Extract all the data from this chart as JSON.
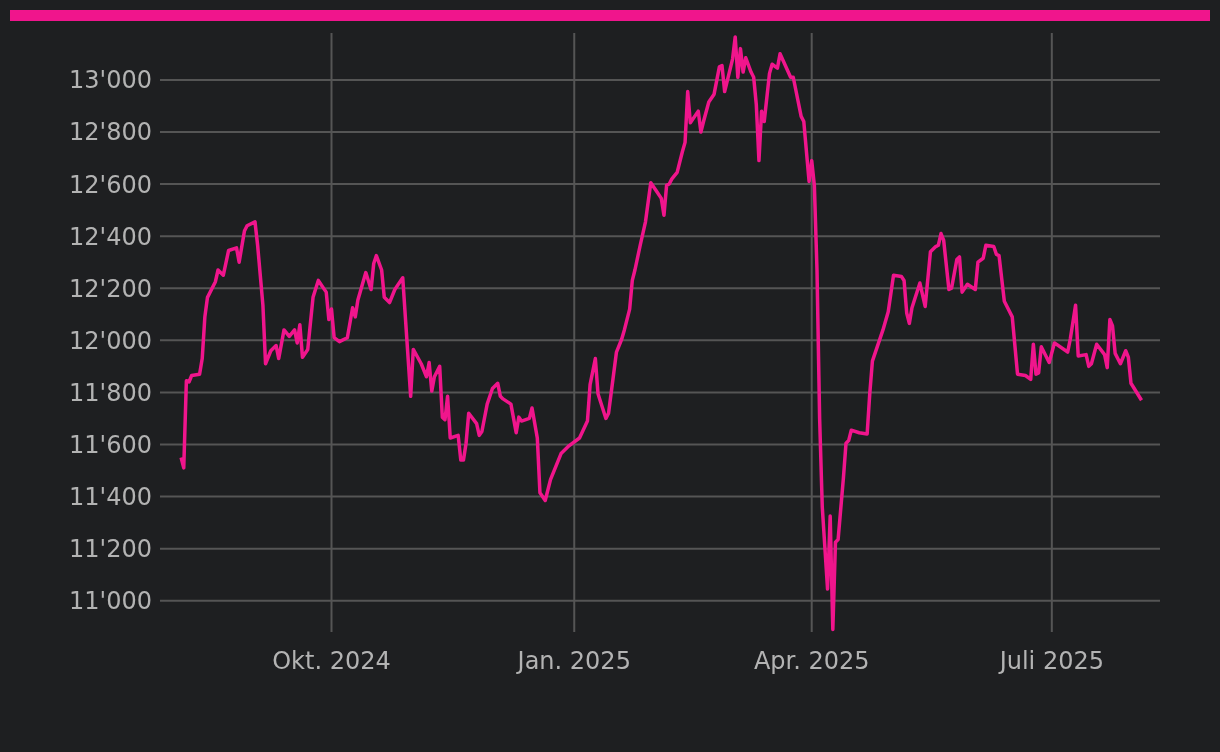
{
  "chart_data": {
    "type": "line",
    "x": [
      "2024-08-05",
      "2024-08-06",
      "2024-08-07",
      "2024-08-08",
      "2024-08-09",
      "2024-08-12",
      "2024-08-13",
      "2024-08-14",
      "2024-08-15",
      "2024-08-18",
      "2024-08-19",
      "2024-08-21",
      "2024-08-23",
      "2024-08-26",
      "2024-08-27",
      "2024-08-29",
      "2024-08-30",
      "2024-09-02",
      "2024-09-03",
      "2024-09-05",
      "2024-09-06",
      "2024-09-08",
      "2024-09-10",
      "2024-09-11",
      "2024-09-13",
      "2024-09-15",
      "2024-09-17",
      "2024-09-18",
      "2024-09-19",
      "2024-09-20",
      "2024-09-22",
      "2024-09-24",
      "2024-09-26",
      "2024-09-29",
      "2024-09-30",
      "2024-10-01",
      "2024-10-02",
      "2024-10-04",
      "2024-10-07",
      "2024-10-09",
      "2024-10-10",
      "2024-10-11",
      "2024-10-14",
      "2024-10-16",
      "2024-10-17",
      "2024-10-18",
      "2024-10-20",
      "2024-10-21",
      "2024-10-23",
      "2024-10-25",
      "2024-10-28",
      "2024-10-31",
      "2024-11-01",
      "2024-11-04",
      "2024-11-06",
      "2024-11-07",
      "2024-11-08",
      "2024-11-09",
      "2024-11-11",
      "2024-11-12",
      "2024-11-13",
      "2024-11-14",
      "2024-11-15",
      "2024-11-18",
      "2024-11-19",
      "2024-11-20",
      "2024-11-21",
      "2024-11-22",
      "2024-11-25",
      "2024-11-26",
      "2024-11-27",
      "2024-11-29",
      "2024-12-01",
      "2024-12-03",
      "2024-12-04",
      "2024-12-05",
      "2024-12-08",
      "2024-12-10",
      "2024-12-11",
      "2024-12-12",
      "2024-12-15",
      "2024-12-16",
      "2024-12-18",
      "2024-12-19",
      "2024-12-21",
      "2024-12-23",
      "2024-12-27",
      "2024-12-30",
      "2025-01-03",
      "2025-01-06",
      "2025-01-07",
      "2025-01-09",
      "2025-01-10",
      "2025-01-13",
      "2025-01-14",
      "2025-01-17",
      "2025-01-19",
      "2025-01-20",
      "2025-01-22",
      "2025-01-23",
      "2025-01-24",
      "2025-01-26",
      "2025-01-28",
      "2025-01-30",
      "2025-02-01",
      "2025-02-03",
      "2025-02-04",
      "2025-02-05",
      "2025-02-06",
      "2025-02-07",
      "2025-02-09",
      "2025-02-11",
      "2025-02-12",
      "2025-02-13",
      "2025-02-14",
      "2025-02-17",
      "2025-02-18",
      "2025-02-19",
      "2025-02-21",
      "2025-02-23",
      "2025-02-25",
      "2025-02-26",
      "2025-02-27",
      "2025-03-02",
      "2025-03-03",
      "2025-03-04",
      "2025-03-05",
      "2025-03-06",
      "2025-03-07",
      "2025-03-09",
      "2025-03-10",
      "2025-03-11",
      "2025-03-12",
      "2025-03-13",
      "2025-03-14",
      "2025-03-16",
      "2025-03-17",
      "2025-03-19",
      "2025-03-20",
      "2025-03-24",
      "2025-03-25",
      "2025-03-28",
      "2025-03-29",
      "2025-03-31",
      "2025-04-01",
      "2025-04-02",
      "2025-04-03",
      "2025-04-04",
      "2025-04-05",
      "2025-04-07",
      "2025-04-08",
      "2025-04-09",
      "2025-04-10",
      "2025-04-11",
      "2025-04-13",
      "2025-04-14",
      "2025-04-15",
      "2025-04-16",
      "2025-04-19",
      "2025-04-22",
      "2025-04-23",
      "2025-04-24",
      "2025-04-28",
      "2025-04-30",
      "2025-05-02",
      "2025-05-05",
      "2025-05-06",
      "2025-05-07",
      "2025-05-08",
      "2025-05-09",
      "2025-05-12",
      "2025-05-14",
      "2025-05-16",
      "2025-05-18",
      "2025-05-19",
      "2025-05-20",
      "2025-05-21",
      "2025-05-23",
      "2025-05-24",
      "2025-05-26",
      "2025-05-27",
      "2025-05-28",
      "2025-05-30",
      "2025-06-02",
      "2025-06-03",
      "2025-06-05",
      "2025-06-06",
      "2025-06-09",
      "2025-06-10",
      "2025-06-11",
      "2025-06-13",
      "2025-06-16",
      "2025-06-18",
      "2025-06-21",
      "2025-06-23",
      "2025-06-24",
      "2025-06-25",
      "2025-06-26",
      "2025-06-27",
      "2025-06-30",
      "2025-07-02",
      "2025-07-07",
      "2025-07-08",
      "2025-07-10",
      "2025-07-11",
      "2025-07-14",
      "2025-07-15",
      "2025-07-16",
      "2025-07-18",
      "2025-07-21",
      "2025-07-22",
      "2025-07-23",
      "2025-07-24",
      "2025-07-25",
      "2025-07-27",
      "2025-07-29",
      "2025-07-30",
      "2025-07-31",
      "2025-08-04"
    ],
    "series": [
      {
        "color": "#f0158c",
        "values": [
          11550,
          11510,
          11845,
          11840,
          11865,
          11870,
          11930,
          12090,
          12165,
          12225,
          12270,
          12250,
          12345,
          12355,
          12300,
          12420,
          12440,
          12455,
          12365,
          12135,
          11910,
          11960,
          11980,
          11930,
          12040,
          12015,
          12040,
          11990,
          12060,
          11935,
          11965,
          12165,
          12230,
          12185,
          12080,
          12120,
          12010,
          11995,
          12010,
          12125,
          12090,
          12155,
          12260,
          12195,
          12295,
          12325,
          12270,
          12165,
          12145,
          12195,
          12240,
          11785,
          11965,
          11910,
          11860,
          11915,
          11805,
          11860,
          11900,
          11705,
          11695,
          11785,
          11625,
          11635,
          11540,
          11540,
          11605,
          11720,
          11680,
          11635,
          11650,
          11755,
          11815,
          11835,
          11785,
          11775,
          11755,
          11645,
          11705,
          11690,
          11700,
          11740,
          11625,
          11415,
          11385,
          11465,
          11565,
          11595,
          11625,
          11690,
          11830,
          11930,
          11795,
          11700,
          11720,
          11955,
          12005,
          12040,
          12120,
          12230,
          12270,
          12365,
          12455,
          12605,
          12575,
          12545,
          12480,
          12595,
          12600,
          12620,
          12645,
          12725,
          12760,
          12955,
          12835,
          12880,
          12800,
          12840,
          12915,
          12945,
          13050,
          13055,
          12955,
          13080,
          13165,
          13010,
          13120,
          13030,
          13085,
          13030,
          13010,
          12905,
          12690,
          12880,
          12840,
          13025,
          13060,
          13045,
          13100,
          13010,
          13010,
          12860,
          12840,
          12610,
          12690,
          12595,
          12270,
          11700,
          11360,
          11045,
          11325,
          10890,
          11225,
          11235,
          11470,
          11605,
          11615,
          11655,
          11645,
          11640,
          11795,
          11920,
          12040,
          12110,
          12250,
          12245,
          12230,
          12105,
          12065,
          12125,
          12220,
          12130,
          12340,
          12360,
          12365,
          12410,
          12385,
          12195,
          12200,
          12310,
          12320,
          12185,
          12215,
          12195,
          12300,
          12315,
          12365,
          12360,
          12330,
          12325,
          12150,
          12090,
          11870,
          11865,
          11850,
          11985,
          11870,
          11875,
          11975,
          11915,
          11990,
          11955,
          12005,
          12135,
          11940,
          11945,
          11900,
          11910,
          11985,
          11945,
          11895,
          12080,
          12055,
          11950,
          11910,
          11960,
          11935,
          11835,
          11770
        ]
      }
    ],
    "xlim": [
      "2024-07-28",
      "2025-08-11"
    ],
    "xticks": [
      {
        "value": "2024-10-01",
        "label": "Okt. 2024"
      },
      {
        "value": "2025-01-01",
        "label": "Jan. 2025"
      },
      {
        "value": "2025-04-01",
        "label": "Apr. 2025"
      },
      {
        "value": "2025-07-01",
        "label": "Juli 2025"
      }
    ],
    "ylim": [
      10880,
      13180
    ],
    "yticks": [
      {
        "value": 11000,
        "label": "11'000"
      },
      {
        "value": 11200,
        "label": "11'200"
      },
      {
        "value": 11400,
        "label": "11'400"
      },
      {
        "value": 11600,
        "label": "11'600"
      },
      {
        "value": 11800,
        "label": "11'800"
      },
      {
        "value": 12000,
        "label": "12'000"
      },
      {
        "value": 12200,
        "label": "12'200"
      },
      {
        "value": 12400,
        "label": "12'400"
      },
      {
        "value": 12600,
        "label": "12'600"
      },
      {
        "value": 12800,
        "label": "12'800"
      },
      {
        "value": 13000,
        "label": "13'000"
      }
    ],
    "grid": true,
    "legend": false,
    "marker": "none",
    "line_style": "solid"
  }
}
